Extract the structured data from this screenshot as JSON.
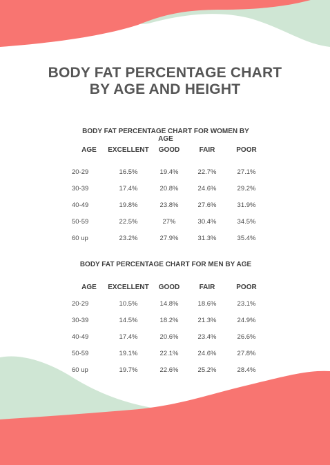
{
  "document": {
    "title_line1": "BODY FAT PERCENTAGE CHART",
    "title_line2": "BY AGE AND HEIGHT"
  },
  "colors": {
    "coral": "#f87571",
    "mint": "#cfe6d4",
    "text": "#4a4a4a"
  },
  "women": {
    "title": "BODY FAT PERCENTAGE CHART FOR WOMEN BY AGE",
    "headers": [
      "AGE",
      "EXCELLENT",
      "GOOD",
      "FAIR",
      "POOR"
    ],
    "rows": [
      [
        "20-29",
        "16.5%",
        "19.4%",
        "22.7%",
        "27.1%"
      ],
      [
        "30-39",
        "17.4%",
        "20.8%",
        "24.6%",
        "29.2%"
      ],
      [
        "40-49",
        "19.8%",
        "23.8%",
        "27.6%",
        "31.9%"
      ],
      [
        "50-59",
        "22.5%",
        "27%",
        "30.4%",
        "34.5%"
      ],
      [
        "60 up",
        "23.2%",
        "27.9%",
        "31.3%",
        "35.4%"
      ]
    ]
  },
  "men": {
    "title": "BODY FAT PERCENTAGE CHART FOR MEN BY AGE",
    "headers": [
      "AGE",
      "EXCELLENT",
      "GOOD",
      "FAIR",
      "POOR"
    ],
    "rows": [
      [
        "20-29",
        "10.5%",
        "14.8%",
        "18.6%",
        "23.1%"
      ],
      [
        "30-39",
        "14.5%",
        "18.2%",
        "21.3%",
        "24.9%"
      ],
      [
        "40-49",
        "17.4%",
        "20.6%",
        "23.4%",
        "26.6%"
      ],
      [
        "50-59",
        "19.1%",
        "22.1%",
        "24.6%",
        "27.8%"
      ],
      [
        "60 up",
        "19.7%",
        "22.6%",
        "25.2%",
        "28.4%"
      ]
    ]
  }
}
